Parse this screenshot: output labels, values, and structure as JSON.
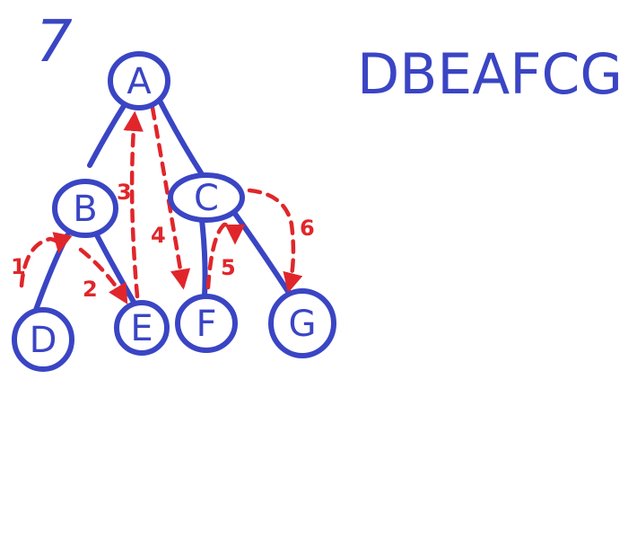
{
  "problem_number": "7",
  "traversal_result": "DBEAFCG",
  "nodes": [
    {
      "id": "A",
      "label": "A"
    },
    {
      "id": "B",
      "label": "B"
    },
    {
      "id": "C",
      "label": "C"
    },
    {
      "id": "D",
      "label": "D"
    },
    {
      "id": "E",
      "label": "E"
    },
    {
      "id": "F",
      "label": "F"
    },
    {
      "id": "G",
      "label": "G"
    }
  ],
  "edges": [
    {
      "from": "A",
      "to": "B"
    },
    {
      "from": "A",
      "to": "C"
    },
    {
      "from": "B",
      "to": "D"
    },
    {
      "from": "B",
      "to": "E"
    },
    {
      "from": "C",
      "to": "F"
    },
    {
      "from": "C",
      "to": "G"
    }
  ],
  "steps": [
    {
      "label": "1",
      "from": "D",
      "to": "B"
    },
    {
      "label": "2",
      "from": "B",
      "to": "E"
    },
    {
      "label": "3",
      "from": "E",
      "to": "A"
    },
    {
      "label": "4",
      "from": "A",
      "to": "F"
    },
    {
      "label": "5",
      "from": "F",
      "to": "C"
    },
    {
      "label": "6",
      "from": "C",
      "to": "G"
    }
  ],
  "colors": {
    "tree_ink": "#3a45c4",
    "trace_ink": "#e0262b",
    "background": "#ffffff"
  }
}
